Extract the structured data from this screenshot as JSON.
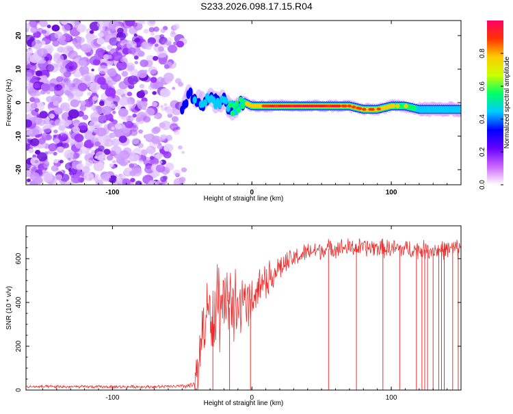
{
  "title": "S233.2026.098.17.15.R04",
  "chart_data": [
    {
      "type": "heatmap",
      "xlabel": "Height of straight line (km)",
      "ylabel": "Frequency (Hz)",
      "xlim": [
        -162,
        150
      ],
      "ylim": [
        -24.5,
        24.5
      ],
      "xticks": [
        "-100",
        "0",
        "100"
      ],
      "xtick_values": [
        -100,
        0,
        100
      ],
      "yticks": [
        "-20",
        "-10",
        "0",
        "10",
        "20"
      ],
      "ytick_values": [
        -20,
        -10,
        0,
        10,
        20
      ],
      "colorbar": {
        "label": "Normalized spectral amplitude",
        "range": [
          0,
          1
        ],
        "ticks": [
          "0.0",
          "0.2",
          "0.4",
          "0.6",
          "0.8"
        ],
        "tick_values": [
          0.0,
          0.2,
          0.4,
          0.6,
          0.8
        ],
        "colors": [
          "#ffffff",
          "#cc66ff",
          "#6600ff",
          "#0000ff",
          "#00ccff",
          "#00ff66",
          "#ccff00",
          "#ffcc00",
          "#ff3300",
          "#ff0066"
        ]
      },
      "noise_region_x": [
        -162,
        -50
      ],
      "ridge": {
        "x": [
          -50,
          -45,
          -40,
          -35,
          -30,
          -25,
          -20,
          -15,
          -10,
          -5,
          0,
          10,
          20,
          30,
          40,
          50,
          60,
          70,
          80,
          90,
          100,
          110,
          120,
          130,
          140,
          150
        ],
        "y": [
          -1,
          2,
          1,
          0,
          1,
          0,
          1,
          -2,
          -1,
          0,
          -1,
          -1,
          -1,
          -1,
          -1,
          -1,
          -1,
          -1,
          -2,
          -2,
          -1,
          -1,
          -2,
          -2,
          -2,
          -2
        ],
        "amplitude": [
          0.3,
          0.35,
          0.4,
          0.4,
          0.5,
          0.55,
          0.5,
          0.6,
          0.7,
          0.7,
          0.8,
          0.9,
          0.95,
          1.0,
          1.0,
          1.0,
          0.95,
          0.9,
          0.9,
          0.85,
          0.75,
          0.7,
          0.5,
          0.45,
          0.45,
          0.45
        ]
      }
    },
    {
      "type": "line",
      "xlabel": "Height of straight line (km)",
      "ylabel": "SNR (10 * v/v)",
      "xlim": [
        -162,
        150
      ],
      "ylim": [
        0,
        750
      ],
      "xticks": [
        "-100",
        "0",
        "100"
      ],
      "xtick_values": [
        -100,
        0,
        100
      ],
      "yticks": [
        "0",
        "200",
        "400",
        "600"
      ],
      "ytick_values": [
        0,
        200,
        400,
        600
      ],
      "color": "#ee2b2b",
      "series": [
        {
          "name": "SNR",
          "x": [
            -162,
            -150,
            -130,
            -110,
            -90,
            -70,
            -50,
            -42,
            -38,
            -35,
            -32,
            -28,
            -25,
            -20,
            -15,
            -10,
            -5,
            0,
            5,
            10,
            15,
            20,
            25,
            30,
            40,
            50,
            60,
            70,
            80,
            90,
            100,
            110,
            120,
            130,
            140,
            150
          ],
          "y": [
            15,
            15,
            15,
            15,
            15,
            15,
            17,
            22,
            120,
            300,
            340,
            320,
            330,
            360,
            380,
            360,
            400,
            420,
            470,
            500,
            530,
            560,
            580,
            600,
            630,
            640,
            650,
            650,
            650,
            650,
            645,
            645,
            640,
            640,
            640,
            650
          ],
          "spread": [
            8,
            8,
            8,
            8,
            8,
            8,
            10,
            15,
            150,
            180,
            190,
            200,
            200,
            180,
            170,
            160,
            130,
            120,
            110,
            100,
            80,
            70,
            60,
            55,
            50,
            50,
            50,
            50,
            50,
            50,
            50,
            50,
            50,
            50,
            50,
            50
          ]
        }
      ],
      "dropouts_x": [
        -28,
        -16,
        -1,
        55,
        75,
        94,
        106,
        118,
        122,
        124,
        126,
        130,
        134,
        136,
        138,
        144,
        148
      ]
    }
  ]
}
